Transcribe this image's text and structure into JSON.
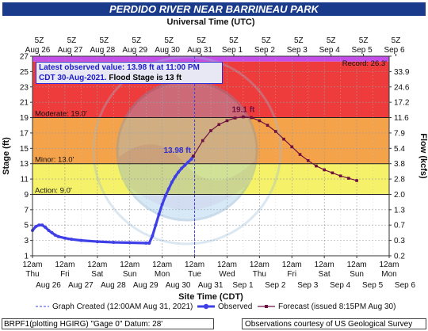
{
  "title": "PERDIDO RIVER NEAR BARRINEAU PARK",
  "top_axis_label": "Universal Time (UTC)",
  "bottom_axis_label": "Site Time (CDT)",
  "left_axis_label": "Stage (ft)",
  "right_axis_label": "Flow (kcfs)",
  "latest_box": {
    "line1": "Latest observed value: 13.98 ft at 11:00 PM",
    "line2_a": "CDT 30-Aug-2021.",
    "line2_b": "Flood Stage is 13 ft"
  },
  "legend": {
    "created": "Graph Created (12:00AM Aug 31, 2021)",
    "observed": "Observed",
    "forecast": "Forecast (issued 8:15PM Aug 30)"
  },
  "footer_left": "BRPF1(plotting HGIRG) \"Gage 0\" Datum: 28'",
  "footer_right": "Observations courtesy of US Geological Survey",
  "colors": {
    "major": "#ee3b3b",
    "moderate": "#f5a34a",
    "minor": "#f5f26a",
    "action": "#ffffff",
    "record": "#c34fe8",
    "observed": "#3f3fe8",
    "forecast": "#6e1040",
    "title_bg": "#1a3a8c"
  },
  "chart_data": {
    "type": "line",
    "title": "PERDIDO RIVER NEAR BARRINEAU PARK",
    "xlabel": "Site Time (CDT)",
    "ylabel": "Stage (ft)",
    "y2label": "Flow (kcfs)",
    "ylim": [
      1,
      27
    ],
    "xlim_days": [
      0,
      11
    ],
    "grid": true,
    "y_ticks": [
      1,
      3,
      5,
      7,
      9,
      11,
      13,
      15,
      17,
      19,
      21,
      23,
      25,
      27
    ],
    "flow_ticks": [
      "0.2",
      "0.3",
      "0.7",
      "1.3",
      "2.0",
      "2.8",
      "3.8",
      "5.4",
      "7.9",
      "11.6",
      "17.2",
      "24.6",
      "33.9",
      ""
    ],
    "bottom_ticks": [
      {
        "t": "12am",
        "d": "Thu"
      },
      {
        "t": "12am",
        "d": "Fri"
      },
      {
        "t": "12am",
        "d": "Sat"
      },
      {
        "t": "12am",
        "d": "Sun"
      },
      {
        "t": "12am",
        "d": "Mon"
      },
      {
        "t": "12am",
        "d": "Tue"
      },
      {
        "t": "12am",
        "d": "Wed"
      },
      {
        "t": "12am",
        "d": "Thu"
      },
      {
        "t": "12am",
        "d": "Fri"
      },
      {
        "t": "12am",
        "d": "Sat"
      },
      {
        "t": "12am",
        "d": "Sun"
      },
      {
        "t": "12am",
        "d": "Mon"
      }
    ],
    "bottom_dates": [
      "Aug 26",
      "Aug 27",
      "Aug 28",
      "Aug 29",
      "Aug 30",
      "Aug 31",
      "Sep 1",
      "Sep 2",
      "Sep 3",
      "Sep 4",
      "Sep 5",
      "Sep 6"
    ],
    "top_ticks": [
      {
        "t": "5Z",
        "d": "Aug 26"
      },
      {
        "t": "5Z",
        "d": "Aug 27"
      },
      {
        "t": "5Z",
        "d": "Aug 28"
      },
      {
        "t": "5Z",
        "d": "Aug 29"
      },
      {
        "t": "5Z",
        "d": "Aug 30"
      },
      {
        "t": "5Z",
        "d": "Aug 31"
      },
      {
        "t": "5Z",
        "d": "Sep 1"
      },
      {
        "t": "5Z",
        "d": "Sep 2"
      },
      {
        "t": "5Z",
        "d": "Sep 3"
      },
      {
        "t": "5Z",
        "d": "Sep 4"
      },
      {
        "t": "5Z",
        "d": "Sep 5"
      },
      {
        "t": "5Z",
        "d": "Sep 6"
      }
    ],
    "thresholds": [
      {
        "name": "Record",
        "label": "Record: 26.3'",
        "value": 26.3
      },
      {
        "name": "Moderate",
        "label": "Moderate: 19.0'",
        "value": 19.0
      },
      {
        "name": "Minor",
        "label": "Minor: 13.0'",
        "value": 13.0
      },
      {
        "name": "Action",
        "label": "Action: 9.0'",
        "value": 9.0
      }
    ],
    "series": [
      {
        "name": "Observed",
        "x_days": [
          0.0,
          0.1,
          0.2,
          0.3,
          0.4,
          0.5,
          0.6,
          0.7,
          0.8,
          1.0,
          1.2,
          1.5,
          2.0,
          2.5,
          3.0,
          3.5,
          3.6,
          3.7,
          3.8,
          3.9,
          4.0,
          4.1,
          4.2,
          4.3,
          4.4,
          4.5,
          4.6,
          4.7,
          4.8,
          4.9,
          4.96
        ],
        "y": [
          4.3,
          4.8,
          5.0,
          5.0,
          4.7,
          4.3,
          4.0,
          3.7,
          3.5,
          3.3,
          3.15,
          3.0,
          2.85,
          2.75,
          2.7,
          2.65,
          2.65,
          3.6,
          5.0,
          6.4,
          7.7,
          8.8,
          9.7,
          10.6,
          11.3,
          11.9,
          12.4,
          12.8,
          13.2,
          13.6,
          13.98
        ]
      },
      {
        "name": "Forecast",
        "x_days": [
          4.96,
          5.25,
          5.5,
          5.75,
          6.0,
          6.25,
          6.5,
          6.75,
          7.0,
          7.25,
          7.5,
          7.75,
          8.0,
          8.25,
          8.5,
          8.75,
          9.0,
          9.25,
          9.5,
          9.75,
          10.0
        ],
        "y": [
          13.98,
          16.0,
          17.3,
          18.1,
          18.6,
          18.95,
          19.1,
          19.0,
          18.6,
          18.0,
          17.2,
          16.2,
          15.2,
          14.2,
          13.4,
          12.7,
          12.2,
          11.8,
          11.4,
          11.1,
          10.8
        ]
      }
    ],
    "annotations": [
      {
        "text": "13.98 ft",
        "x_days": 4.96,
        "y": 13.98
      },
      {
        "text": "19.1 ft",
        "x_days": 6.5,
        "y": 19.1
      }
    ],
    "current_time_days": 5.0
  }
}
